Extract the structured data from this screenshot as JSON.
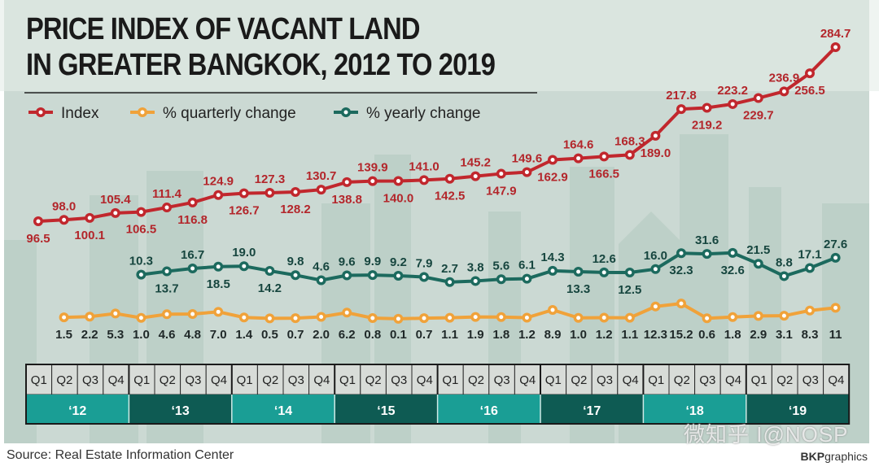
{
  "chart_data": {
    "type": "line",
    "title_line1": "PRICE INDEX OF VACANT LAND",
    "title_line2": "IN GREATER BANGKOK, 2012 TO 2019",
    "quarters": [
      "Q1",
      "Q2",
      "Q3",
      "Q4"
    ],
    "years": [
      "‘12",
      "‘13",
      "‘14",
      "‘15",
      "‘16",
      "‘17",
      "‘18",
      "‘19"
    ],
    "series": [
      {
        "name": "Index",
        "color": "#c1272d",
        "label_color": "#b3262b",
        "start": 0,
        "values": [
          96.5,
          98.0,
          100.1,
          105.4,
          106.5,
          111.4,
          116.8,
          124.9,
          126.7,
          127.3,
          128.2,
          130.7,
          138.8,
          139.9,
          140.0,
          141.0,
          142.5,
          145.2,
          147.9,
          149.6,
          162.9,
          164.6,
          166.5,
          168.3,
          189.0,
          217.8,
          219.2,
          223.2,
          229.7,
          236.9,
          256.5,
          284.7
        ]
      },
      {
        "name": "% quarterly change",
        "color": "#f0a23a",
        "label_color": "#1f2828",
        "start": 1,
        "values": [
          1.5,
          2.2,
          5.3,
          1.0,
          4.6,
          4.8,
          7.0,
          1.4,
          0.5,
          0.7,
          2.0,
          6.2,
          0.8,
          0.1,
          0.7,
          1.1,
          1.9,
          1.8,
          1.2,
          8.9,
          1.0,
          1.2,
          1.1,
          12.3,
          15.2,
          0.6,
          1.8,
          2.9,
          3.1,
          8.3,
          11
        ]
      },
      {
        "name": "% yearly change",
        "color": "#1c6a5e",
        "label_color": "#17463f",
        "start": 4,
        "values": [
          10.3,
          13.7,
          16.7,
          18.5,
          19.0,
          14.2,
          9.8,
          4.6,
          9.6,
          9.9,
          9.2,
          7.9,
          2.7,
          3.8,
          5.6,
          6.1,
          14.3,
          13.3,
          12.6,
          12.5,
          16.0,
          32.3,
          31.6,
          32.6,
          21.5,
          8.8,
          17.1,
          27.6
        ]
      }
    ],
    "colors": {
      "panel": "#cbd9d3",
      "year_light": "#1a9e95",
      "year_dark": "#0e5b53",
      "quarter_cell": "#d8dcd8"
    }
  },
  "footer": {
    "source": "Source: Real Estate Information Center",
    "brand_bold": "BKP",
    "brand_rest": "graphics",
    "watermark": "微知乎 I@NOSP"
  }
}
